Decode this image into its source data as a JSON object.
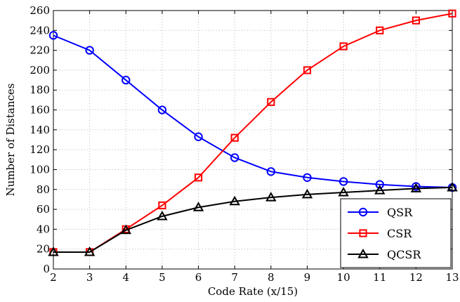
{
  "chart_data": {
    "type": "line",
    "title": "",
    "xlabel": "Code Rate (x/15)",
    "ylabel": "Number of Distances",
    "xlim": [
      2,
      13
    ],
    "ylim": [
      0,
      260
    ],
    "xticks": [
      2,
      3,
      4,
      5,
      6,
      7,
      8,
      9,
      10,
      11,
      12,
      13
    ],
    "yticks": [
      0,
      20,
      40,
      60,
      80,
      100,
      120,
      140,
      160,
      180,
      200,
      220,
      240,
      260
    ],
    "grid": true,
    "legend_position": "bottom-right",
    "x": [
      2,
      3,
      4,
      5,
      6,
      7,
      8,
      9,
      10,
      11,
      12,
      13
    ],
    "series": [
      {
        "name": "QSR",
        "color": "#0000ff",
        "marker": "circle",
        "values": [
          235,
          220,
          190,
          160,
          133,
          112,
          98,
          92,
          88,
          85,
          83,
          82
        ]
      },
      {
        "name": "CSR",
        "color": "#ff0000",
        "marker": "square",
        "values": [
          17,
          17,
          40,
          64,
          92,
          132,
          168,
          200,
          224,
          240,
          250,
          257
        ]
      },
      {
        "name": "QCSR",
        "color": "#000000",
        "marker": "triangle",
        "values": [
          17,
          17,
          39,
          53,
          62,
          68,
          72,
          75,
          77,
          79,
          81,
          82
        ]
      }
    ]
  }
}
